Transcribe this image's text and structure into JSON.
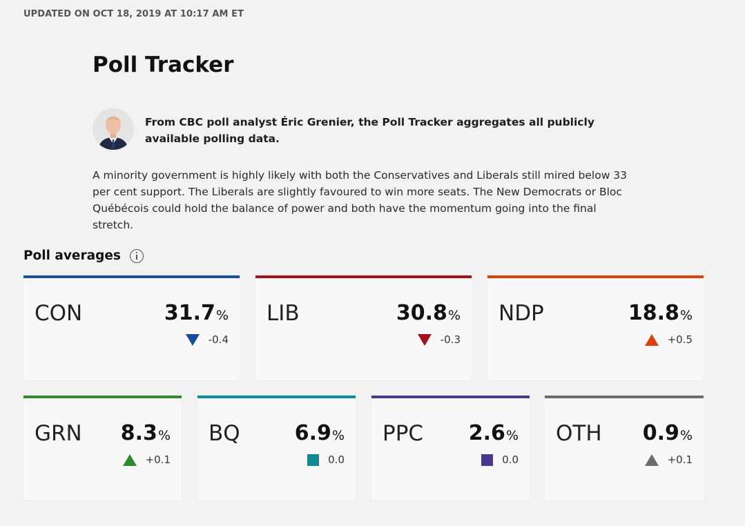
{
  "header": {
    "updated": "UPDATED ON OCT 18, 2019 AT 10:17 AM ET",
    "title": "Poll Tracker"
  },
  "author": {
    "byline": "From CBC poll analyst Éric Grenier, the Poll Tracker aggregates all publicly available polling data."
  },
  "description": "A minority government is highly likely with both the Conservatives and Liberals still mired below 33 per cent support. The Liberals are slightly favoured to win more seats. The New Democrats or Bloc Québécois could hold the balance of power and both have the momentum going into the final stretch.",
  "poll_averages": {
    "title": "Poll averages",
    "unit": "%",
    "parties": [
      {
        "code": "CON",
        "value": "31.7",
        "change": "-0.4",
        "direction": "down",
        "color": "#1a4c9c"
      },
      {
        "code": "LIB",
        "value": "30.8",
        "change": "-0.3",
        "direction": "down",
        "color": "#a3141a"
      },
      {
        "code": "NDP",
        "value": "18.8",
        "change": "+0.5",
        "direction": "up",
        "color": "#d9420b"
      },
      {
        "code": "GRN",
        "value": "8.3",
        "change": "+0.1",
        "direction": "up",
        "color": "#2f8a2f"
      },
      {
        "code": "BQ",
        "value": "6.9",
        "change": "0.0",
        "direction": "flat",
        "color": "#0e8a94"
      },
      {
        "code": "PPC",
        "value": "2.6",
        "change": "0.0",
        "direction": "flat",
        "color": "#4a378f"
      },
      {
        "code": "OTH",
        "value": "0.9",
        "change": "+0.1",
        "direction": "up",
        "color": "#6b6b6b"
      }
    ]
  }
}
